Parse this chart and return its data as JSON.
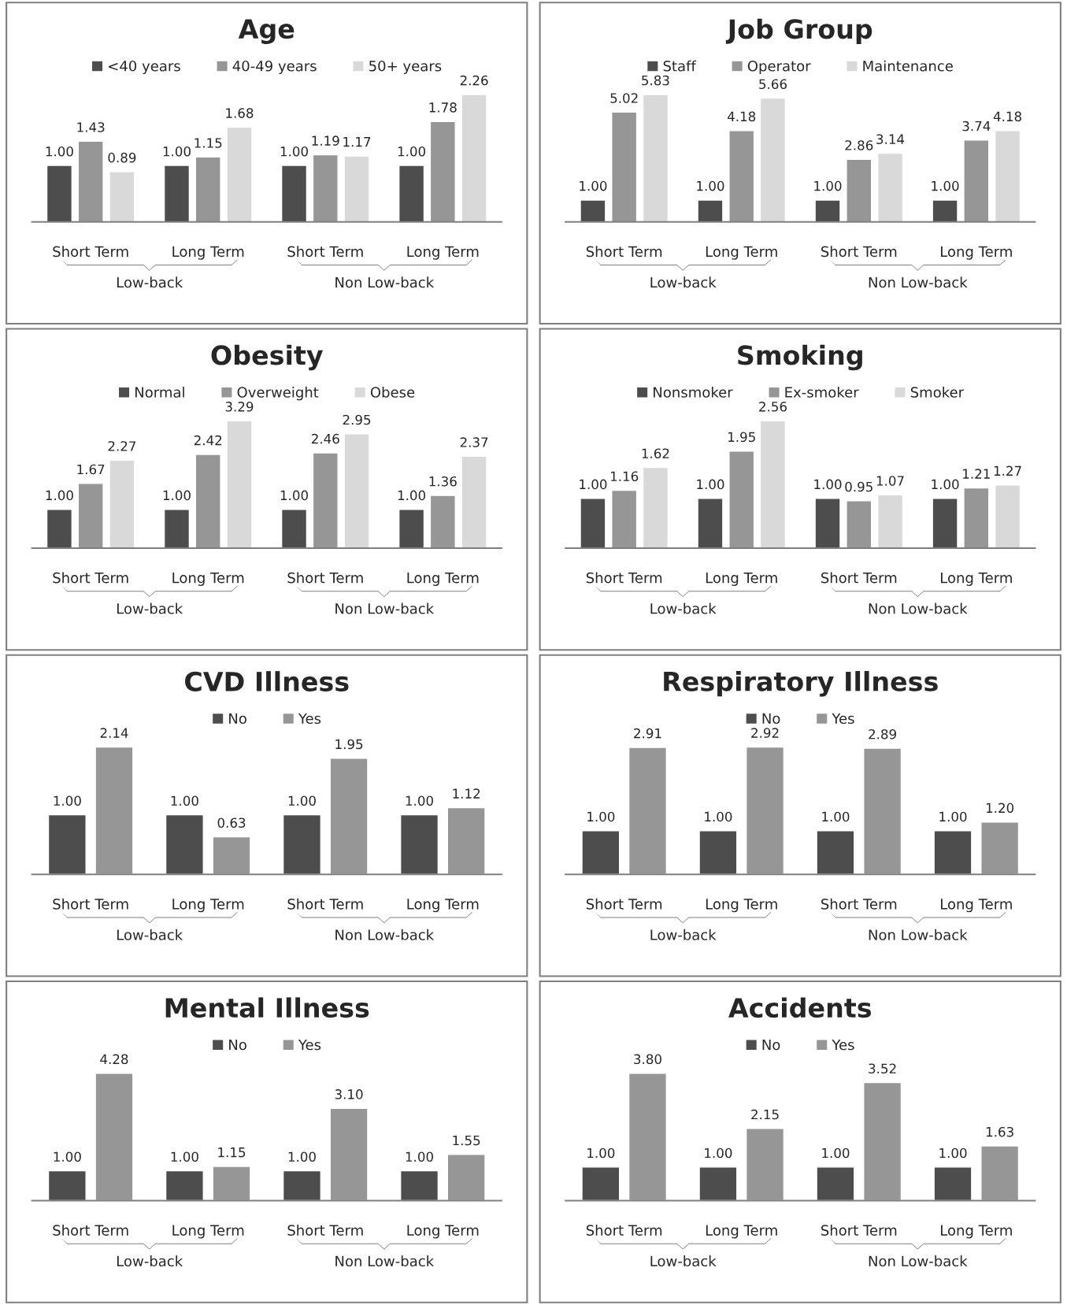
{
  "chart_data": [
    {
      "type": "bar",
      "title": "Age",
      "categories": [
        "Short Term",
        "Long Term",
        "Short Term",
        "Long Term"
      ],
      "legend": "top",
      "annotations": [
        "Low-back",
        "Non Low-back"
      ],
      "series": [
        {
          "name": "<40 years",
          "color": "#4d4d4d",
          "values": [
            1.0,
            1.0,
            1.0,
            1.0
          ],
          "value_labels": [
            "1.00",
            "1.00",
            "1.00",
            "1.00"
          ]
        },
        {
          "name": "40-49 years",
          "color": "#969696",
          "values": [
            1.43,
            1.15,
            1.19,
            1.78
          ],
          "value_labels": [
            "1.43",
            "1.15",
            "1.19",
            "1.78"
          ]
        },
        {
          "name": "50+ years",
          "color": "#d9d9d9",
          "values": [
            0.89,
            1.68,
            1.17,
            2.26
          ],
          "value_labels": [
            "0.89",
            "1.68",
            "1.17",
            "2.26"
          ]
        }
      ]
    },
    {
      "type": "bar",
      "title": "Job Group",
      "categories": [
        "Short Term",
        "Long Term",
        "Short Term",
        "Long Term"
      ],
      "legend": "top",
      "annotations": [
        "Low-back",
        "Non Low-back"
      ],
      "series": [
        {
          "name": "Staff",
          "color": "#4d4d4d",
          "values": [
            1.0,
            1.0,
            1.0,
            1.0
          ],
          "value_labels": [
            "1.00",
            "1.00",
            "1.00",
            "1.00"
          ]
        },
        {
          "name": "Operator",
          "color": "#969696",
          "values": [
            5.02,
            4.18,
            2.86,
            3.74
          ],
          "value_labels": [
            "5.02",
            "4.18",
            "2.86",
            "3.74"
          ]
        },
        {
          "name": "Maintenance",
          "color": "#d9d9d9",
          "values": [
            5.83,
            5.66,
            3.14,
            4.18
          ],
          "value_labels": [
            "5.83",
            "5.66",
            "3.14",
            "4.18"
          ]
        }
      ]
    },
    {
      "type": "bar",
      "title": "Obesity",
      "categories": [
        "Short Term",
        "Long Term",
        "Short Term",
        "Long Term"
      ],
      "legend": "top",
      "annotations": [
        "Low-back",
        "Non Low-back"
      ],
      "series": [
        {
          "name": "Normal",
          "color": "#4d4d4d",
          "values": [
            1.0,
            1.0,
            1.0,
            1.0
          ],
          "value_labels": [
            "1.00",
            "1.00",
            "1.00",
            "1.00"
          ]
        },
        {
          "name": "Overweight",
          "color": "#969696",
          "values": [
            1.67,
            2.42,
            2.46,
            1.36
          ],
          "value_labels": [
            "1.67",
            "2.42",
            "2.46",
            "1.36"
          ]
        },
        {
          "name": "Obese",
          "color": "#d9d9d9",
          "values": [
            2.27,
            3.29,
            2.95,
            2.37
          ],
          "value_labels": [
            "2.27",
            "3.29",
            "2.95",
            "2.37"
          ]
        }
      ]
    },
    {
      "type": "bar",
      "title": "Smoking",
      "categories": [
        "Short Term",
        "Long Term",
        "Short Term",
        "Long Term"
      ],
      "legend": "top",
      "annotations": [
        "Low-back",
        "Non Low-back"
      ],
      "series": [
        {
          "name": "Nonsmoker",
          "color": "#4d4d4d",
          "values": [
            1.0,
            1.0,
            1.0,
            1.0
          ],
          "value_labels": [
            "1.00",
            "1.00",
            "1.00",
            "1.00"
          ]
        },
        {
          "name": "Ex-smoker",
          "color": "#969696",
          "values": [
            1.16,
            1.95,
            0.95,
            1.21
          ],
          "value_labels": [
            "1.16",
            "1.95",
            "0.95",
            "1.21"
          ]
        },
        {
          "name": "Smoker",
          "color": "#d9d9d9",
          "values": [
            1.62,
            2.56,
            1.07,
            1.27
          ],
          "value_labels": [
            "1.62",
            "2.56",
            "1.07",
            "1.27"
          ]
        }
      ]
    },
    {
      "type": "bar",
      "title": "CVD Illness",
      "categories": [
        "Short Term",
        "Long Term",
        "Short Term",
        "Long Term"
      ],
      "legend": "top",
      "annotations": [
        "Low-back",
        "Non Low-back"
      ],
      "series": [
        {
          "name": "No",
          "color": "#4d4d4d",
          "values": [
            1.0,
            1.0,
            1.0,
            1.0
          ],
          "value_labels": [
            "1.00",
            "1.00",
            "1.00",
            "1.00"
          ]
        },
        {
          "name": "Yes",
          "color": "#969696",
          "values": [
            2.14,
            0.63,
            1.95,
            1.12
          ],
          "value_labels": [
            "2.14",
            "0.63",
            "1.95",
            "1.12"
          ]
        }
      ]
    },
    {
      "type": "bar",
      "title": "Respiratory Illness",
      "categories": [
        "Short Term",
        "Long Term",
        "Short Term",
        "Long Term"
      ],
      "legend": "top",
      "annotations": [
        "Low-back",
        "Non Low-back"
      ],
      "series": [
        {
          "name": "No",
          "color": "#4d4d4d",
          "values": [
            1.0,
            1.0,
            1.0,
            1.0
          ],
          "value_labels": [
            "1.00",
            "1.00",
            "1.00",
            "1.00"
          ]
        },
        {
          "name": "Yes",
          "color": "#969696",
          "values": [
            2.91,
            2.92,
            2.89,
            1.2
          ],
          "value_labels": [
            "2.91",
            "2.92",
            "2.89",
            "1.20"
          ]
        }
      ]
    },
    {
      "type": "bar",
      "title": "Mental Illness",
      "categories": [
        "Short Term",
        "Long Term",
        "Short Term",
        "Long Term"
      ],
      "legend": "top",
      "annotations": [
        "Low-back",
        "Non Low-back"
      ],
      "series": [
        {
          "name": "No",
          "color": "#4d4d4d",
          "values": [
            1.0,
            1.0,
            1.0,
            1.0
          ],
          "value_labels": [
            "1.00",
            "1.00",
            "1.00",
            "1.00"
          ]
        },
        {
          "name": "Yes",
          "color": "#969696",
          "values": [
            4.28,
            1.15,
            3.1,
            1.55
          ],
          "value_labels": [
            "4.28",
            "1.15",
            "3.10",
            "1.55"
          ]
        }
      ]
    },
    {
      "type": "bar",
      "title": "Accidents",
      "categories": [
        "Short Term",
        "Long Term",
        "Short Term",
        "Long Term"
      ],
      "legend": "top",
      "annotations": [
        "Low-back",
        "Non Low-back"
      ],
      "series": [
        {
          "name": "No",
          "color": "#4d4d4d",
          "values": [
            1.0,
            1.0,
            1.0,
            1.0
          ],
          "value_labels": [
            "1.00",
            "1.00",
            "1.00",
            "1.00"
          ]
        },
        {
          "name": "Yes",
          "color": "#969696",
          "values": [
            3.8,
            2.15,
            3.52,
            1.63
          ],
          "value_labels": [
            "3.80",
            "2.15",
            "3.52",
            "1.63"
          ]
        }
      ]
    }
  ]
}
